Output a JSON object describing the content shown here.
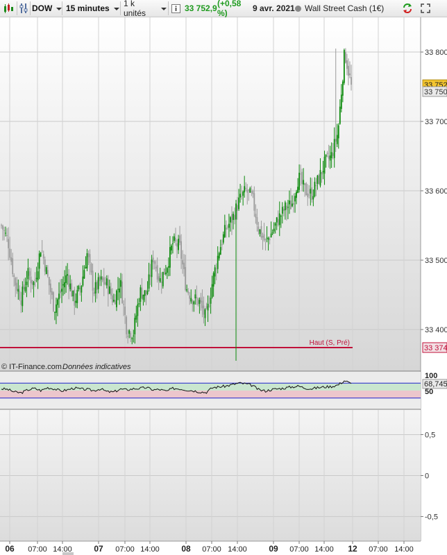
{
  "toolbar": {
    "symbol": "DOW",
    "interval": "15 minutes",
    "units": "1 k unités",
    "price": "33 752,9",
    "change": "(+0,58 %)",
    "date": "9 avr. 2021",
    "instrument": "Wall Street Cash (1€)",
    "icons": [
      "candlestick-chart-icon",
      "properties-icon",
      "info-icon",
      "refresh-icon",
      "expand-icon"
    ]
  },
  "footer": {
    "copyright": "© IT-Finance.com",
    "disclaimer": "Données indicatives"
  },
  "price_labels": {
    "current": "33 752",
    "prev": "33 750",
    "level": "33 374",
    "level_name": "Haut (S, Pré)"
  },
  "colors": {
    "up": "#0b8a0b",
    "down": "#9a9a9a",
    "level": "#c0103a",
    "current_bg": "#f3c52f",
    "rsi_line": "#2020cc"
  },
  "chart_data": [
    {
      "type": "candlestick",
      "x_ticks": [
        "06",
        "07:00",
        "14:00",
        "07",
        "07:00",
        "14:00",
        "08",
        "07:00",
        "14:00",
        "09",
        "07:00",
        "14:00",
        "12",
        "07:00",
        "14:00"
      ],
      "y_ticks": [
        "33 800",
        "33 700",
        "33 600",
        "33 500",
        "33 400"
      ],
      "ylim": [
        33340,
        33850
      ],
      "level": 33374,
      "last": 33752.9,
      "close_path": [
        33550,
        33528,
        33470,
        33445,
        33480,
        33465,
        33520,
        33475,
        33430,
        33455,
        33480,
        33440,
        33460,
        33510,
        33455,
        33470,
        33465,
        33440,
        33470,
        33400,
        33395,
        33455,
        33450,
        33505,
        33470,
        33490,
        33525,
        33520,
        33460,
        33445,
        33440,
        33415,
        33470,
        33515,
        33545,
        33560,
        33585,
        33600,
        33590,
        33545,
        33525,
        33540,
        33560,
        33575,
        33580,
        33620,
        33600,
        33595,
        33615,
        33640,
        33650,
        33685,
        33800,
        33752
      ],
      "high": 33805,
      "low": 33355
    },
    {
      "type": "line",
      "name": "RSI",
      "y_ticks": [
        "100",
        "50"
      ],
      "value_label": "68,745",
      "last": 68.745,
      "bands": [
        30,
        70
      ],
      "ylim": [
        0,
        100
      ],
      "values": [
        55,
        53,
        46,
        44,
        52,
        56,
        50,
        58,
        55,
        49,
        52,
        57,
        54,
        53,
        50,
        55,
        47,
        46,
        54,
        52,
        55,
        56,
        58,
        52,
        53,
        48,
        56,
        55,
        52,
        50,
        47,
        45,
        58,
        60,
        62,
        66,
        70,
        68,
        64,
        52,
        49,
        53,
        55,
        57,
        60,
        62,
        57,
        55,
        58,
        60,
        61,
        65,
        77,
        68
      ]
    },
    {
      "type": "line",
      "name": "empty-indicator",
      "y_ticks": [
        "0,5",
        "0",
        "-0,5"
      ],
      "ylim": [
        -0.8,
        0.8
      ]
    }
  ]
}
